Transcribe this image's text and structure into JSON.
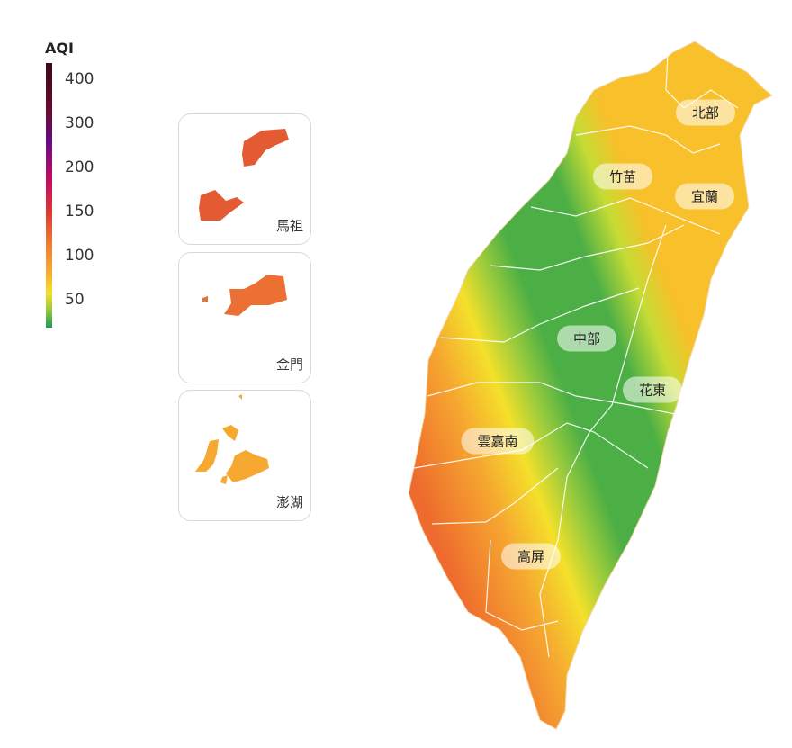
{
  "legend": {
    "title": "AQI",
    "ticks": [
      "400",
      "300",
      "200",
      "150",
      "100",
      "50"
    ]
  },
  "insets": [
    {
      "label": "馬祖",
      "color": "#e45a32"
    },
    {
      "label": "金門",
      "color": "#ec7034"
    },
    {
      "label": "澎湖",
      "color": "#f6a830"
    }
  ],
  "regions": [
    {
      "label": "北部"
    },
    {
      "label": "竹苗"
    },
    {
      "label": "宜蘭"
    },
    {
      "label": "中部"
    },
    {
      "label": "花東"
    },
    {
      "label": "雲嘉南"
    },
    {
      "label": "高屏"
    }
  ],
  "colors": {
    "west": "#f07a30",
    "mountain": "#4caf45",
    "east": "#f4e02a"
  }
}
